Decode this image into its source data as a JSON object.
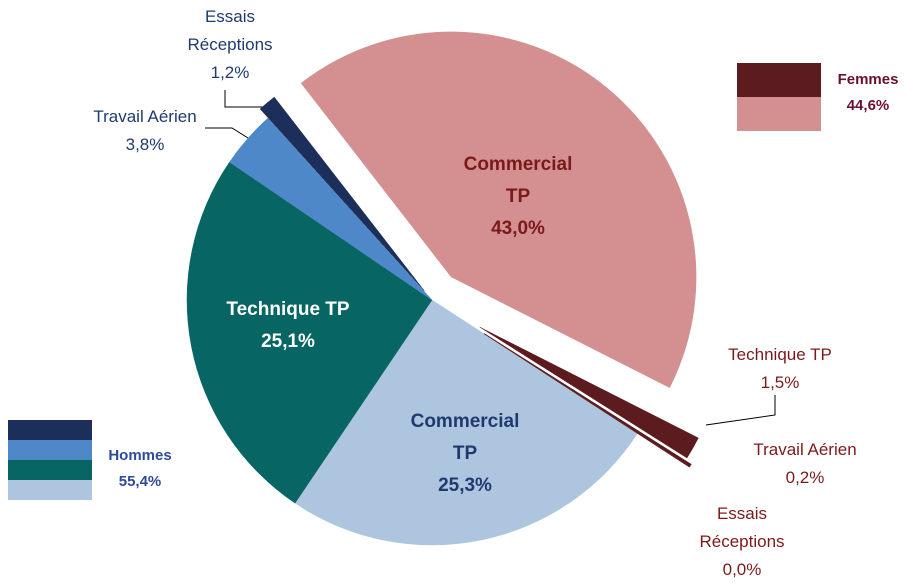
{
  "chart_data": {
    "type": "pie",
    "groups": [
      {
        "name": "Hommes",
        "value": 55.4,
        "value_label": "55,4%",
        "slices": [
          {
            "name": "Commercial TP",
            "value": 25.3,
            "value_label": "25,3%",
            "color": "#adc5df"
          },
          {
            "name": "Technique TP",
            "value": 25.1,
            "value_label": "25,1%",
            "color": "#076563"
          },
          {
            "name": "Travail Aérien",
            "value": 3.8,
            "value_label": "3,8%",
            "color": "#4f88c8"
          },
          {
            "name": "Essais Réceptions",
            "value": 1.2,
            "value_label": "1,2%",
            "color": "#1c2e5a"
          }
        ]
      },
      {
        "name": "Femmes",
        "value": 44.6,
        "value_label": "44,6%",
        "slices": [
          {
            "name": "Commercial TP",
            "value": 43.0,
            "value_label": "43,0%",
            "color": "#d49090"
          },
          {
            "name": "Technique TP",
            "value": 1.5,
            "value_label": "1,5%",
            "color": "#5c1c1f"
          },
          {
            "name": "Travail Aérien",
            "value": 0.2,
            "value_label": "0,2%",
            "color": "#5c1c1f"
          },
          {
            "name": "Essais Réceptions",
            "value": 0.0,
            "value_label": "0,0%",
            "color": "#5c1c1f"
          }
        ]
      }
    ]
  }
}
